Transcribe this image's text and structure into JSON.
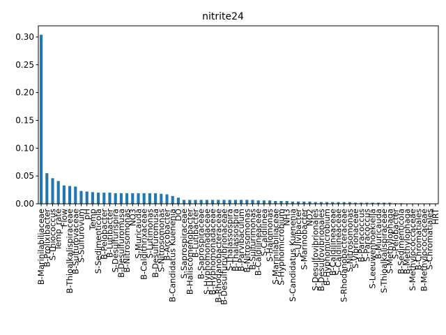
{
  "chart_data": {
    "type": "bar",
    "title": "nitrite24",
    "xlabel": "",
    "ylabel": "",
    "ylim": [
      0,
      0.32
    ],
    "yticks": [
      0.0,
      0.05,
      0.1,
      0.15,
      0.2,
      0.25,
      0.3
    ],
    "ytick_labels": [
      "0.00",
      "0.05",
      "0.10",
      "0.15",
      "0.20",
      "0.25",
      "0.30"
    ],
    "grid": false,
    "legend": "none",
    "bar_color": "#1f77b4",
    "categories": [
      "B-Marinilabiliaceae",
      "B-Prolixibacter",
      "S-Thiococcus",
      "Temp_rate",
      "Flow",
      "B-Thioalkalispiraceae",
      "B-Sulfurovaceae",
      "S-Sulfurovum",
      "pH",
      "Temp",
      "S-Sedimenticola",
      "B-Pelobacter",
      "B-Lutibacter",
      "S-Desulfurispira",
      "B-Desulfuromusa",
      "B-Nitrosomonas",
      "NO3",
      "S-Muricauda",
      "B-Caldithrixaceae",
      "S-Lutimonas",
      "B-Desulfuromusa",
      "S-Nitrosomonas",
      "B-Arcobacter",
      "B-Candidatus Kuenenia",
      "DO",
      "S-Saprospiraceae",
      "B-Haliscomenobacter",
      "B-Lutibacter",
      "B-Saprospiraceae",
      "S-Hyphomonadaceae",
      "B-Hyphomonadaceae",
      "B-Rhodanobacteraceae",
      "B-Desulfurivibrionaceae",
      "S-Thalassospira",
      "B-Thalassospira",
      "B-Parvibaculum",
      "B-Nitrosomonas",
      "B-Sulfurimonas",
      "B-Caldilineaceae",
      "S-Caldilinea",
      "S-Halomonas",
      "S-Marinilabiliaceae",
      "S-Hyphomicrobium",
      "NH3",
      "S-Candidatus Kuenenia",
      "S-Ulvibacter",
      "S-Marinobacter",
      "NO2",
      "S-Desulfovibrionales",
      "B-Desulfovibrionales",
      "B-Hyphomicrobium",
      "B-Caldilineaceae",
      "S-Caldilineaceae",
      "S-Rhodanobacteraceae",
      "S-Nitrosomonas",
      "S-Vibrionaceae",
      "B-Paracoccus",
      "S-Paracoccus",
      "S-Leeuwenhoekiella",
      "B-Muricauda",
      "S-Thioalkalispiraceae",
      "S-Methylophaga",
      "S-Pelobacter",
      "B-Sedimenticola",
      "B-Methylophaga",
      "S-Methylococcaceae",
      "B-Chromatiales",
      "B-Methylococcaceae",
      "S-Chromatiales",
      "HRT"
    ],
    "values": [
      0.304,
      0.055,
      0.046,
      0.041,
      0.033,
      0.032,
      0.031,
      0.023,
      0.022,
      0.021,
      0.02,
      0.02,
      0.02,
      0.019,
      0.019,
      0.019,
      0.019,
      0.019,
      0.019,
      0.019,
      0.019,
      0.018,
      0.017,
      0.014,
      0.011,
      0.007,
      0.007,
      0.007,
      0.007,
      0.007,
      0.007,
      0.007,
      0.007,
      0.007,
      0.007,
      0.007,
      0.007,
      0.007,
      0.006,
      0.006,
      0.006,
      0.005,
      0.005,
      0.005,
      0.004,
      0.004,
      0.004,
      0.004,
      0.003,
      0.003,
      0.003,
      0.003,
      0.003,
      0.003,
      0.003,
      0.002,
      0.002,
      0.002,
      0.002,
      0.002,
      0.002,
      0.002,
      0.001,
      0.001,
      0.0,
      0.0,
      0.0,
      0.0,
      0.0,
      0.0
    ]
  }
}
